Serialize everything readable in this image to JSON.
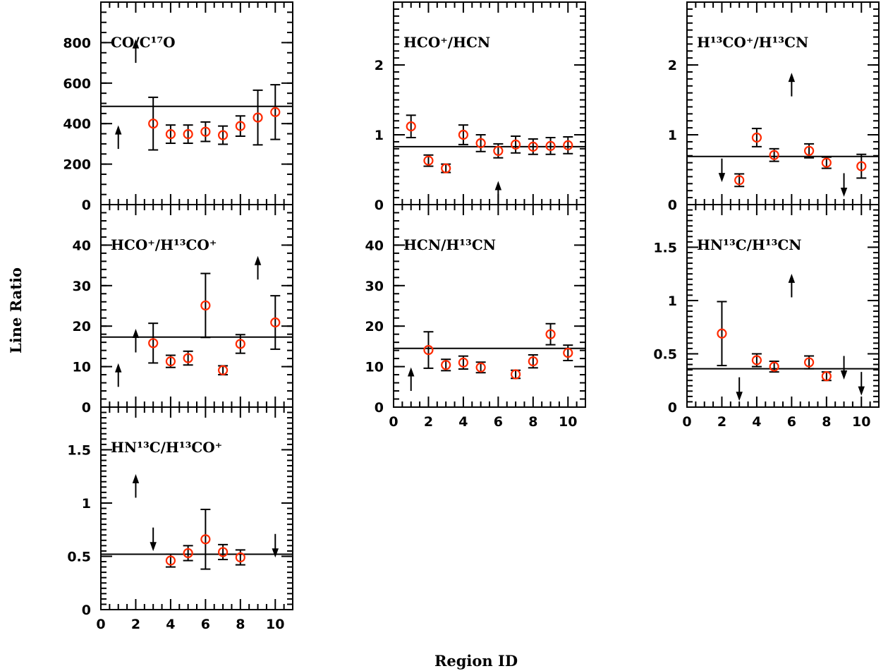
{
  "figure": {
    "xlabel": "Region ID",
    "ylabel": "Line Ratio",
    "colors": {
      "axes": "#000000",
      "marker": "#ff2a00"
    }
  },
  "chart_data": [
    {
      "id": "co-c17o",
      "type": "scatter",
      "title": "CO/C¹⁷O",
      "xlim": [
        0,
        11
      ],
      "ylim": [
        0,
        1000
      ],
      "yticks": [
        0,
        200,
        400,
        600,
        800
      ],
      "yminor": 50,
      "mean_line": 485,
      "points": [
        {
          "x": 3,
          "y": 400,
          "err": 130
        },
        {
          "x": 4,
          "y": 348,
          "err": 45
        },
        {
          "x": 5,
          "y": 348,
          "err": 45
        },
        {
          "x": 6,
          "y": 360,
          "err": 48
        },
        {
          "x": 7,
          "y": 343,
          "err": 45
        },
        {
          "x": 8,
          "y": 388,
          "err": 50
        },
        {
          "x": 9,
          "y": 430,
          "err": 135
        },
        {
          "x": 10,
          "y": 457,
          "err": 135
        }
      ],
      "limits": [
        {
          "x": 1,
          "y": 275,
          "dir": "up"
        },
        {
          "x": 2,
          "y": 700,
          "dir": "up"
        }
      ]
    },
    {
      "id": "hcop-hcn",
      "type": "scatter",
      "title": "HCO⁺/HCN",
      "xlim": [
        0,
        11
      ],
      "ylim": [
        0,
        2.9
      ],
      "yticks": [
        0,
        1,
        2
      ],
      "yminor": 0.1,
      "mean_line": 0.83,
      "points": [
        {
          "x": 1,
          "y": 1.12,
          "err": 0.16
        },
        {
          "x": 2,
          "y": 0.63,
          "err": 0.08
        },
        {
          "x": 3,
          "y": 0.52,
          "err": 0.06
        },
        {
          "x": 4,
          "y": 1.0,
          "err": 0.14
        },
        {
          "x": 5,
          "y": 0.88,
          "err": 0.12
        },
        {
          "x": 6,
          "y": 0.77,
          "err": 0.1
        },
        {
          "x": 7,
          "y": 0.86,
          "err": 0.12
        },
        {
          "x": 8,
          "y": 0.83,
          "err": 0.11
        },
        {
          "x": 9,
          "y": 0.84,
          "err": 0.12
        },
        {
          "x": 10,
          "y": 0.85,
          "err": 0.12
        }
      ],
      "limits": [
        {
          "x": 6,
          "y": 0.0,
          "dir": "up"
        }
      ]
    },
    {
      "id": "h13cop-h13cn",
      "type": "scatter",
      "title": "H¹³CO⁺/H¹³CN",
      "xlim": [
        0,
        11
      ],
      "ylim": [
        0,
        2.9
      ],
      "yticks": [
        0,
        1,
        2
      ],
      "yminor": 0.1,
      "mean_line": 0.69,
      "points": [
        {
          "x": 3,
          "y": 0.35,
          "err": 0.09
        },
        {
          "x": 4,
          "y": 0.96,
          "err": 0.13
        },
        {
          "x": 5,
          "y": 0.71,
          "err": 0.09
        },
        {
          "x": 7,
          "y": 0.77,
          "err": 0.1
        },
        {
          "x": 8,
          "y": 0.6,
          "err": 0.08
        },
        {
          "x": 10,
          "y": 0.55,
          "err": 0.17
        }
      ],
      "limits": [
        {
          "x": 2,
          "y": 0.66,
          "dir": "down"
        },
        {
          "x": 6,
          "y": 1.55,
          "dir": "up"
        },
        {
          "x": 9,
          "y": 0.45,
          "dir": "down"
        }
      ]
    },
    {
      "id": "hcop-h13cop",
      "type": "scatter",
      "title": "HCO⁺/H¹³CO⁺",
      "xlim": [
        0,
        11
      ],
      "ylim": [
        0,
        50
      ],
      "yticks": [
        0,
        10,
        20,
        30,
        40
      ],
      "yminor": 2,
      "mean_line": 17.3,
      "points": [
        {
          "x": 3,
          "y": 15.8,
          "err": 4.9
        },
        {
          "x": 4,
          "y": 11.3,
          "err": 1.5
        },
        {
          "x": 5,
          "y": 12.1,
          "err": 1.7
        },
        {
          "x": 6,
          "y": 25.1,
          "err": 7.9
        },
        {
          "x": 7,
          "y": 9.1,
          "err": 1.1
        },
        {
          "x": 8,
          "y": 15.6,
          "err": 2.3
        },
        {
          "x": 10,
          "y": 20.9,
          "err": 6.6
        }
      ],
      "limits": [
        {
          "x": 1,
          "y": 5,
          "dir": "up"
        },
        {
          "x": 2,
          "y": 13.5,
          "dir": "up"
        },
        {
          "x": 9,
          "y": 31.5,
          "dir": "up"
        }
      ]
    },
    {
      "id": "hcn-h13cn",
      "type": "scatter",
      "title": "HCN/H¹³CN",
      "xlim": [
        0,
        11
      ],
      "ylim": [
        0,
        50
      ],
      "yticks": [
        0,
        10,
        20,
        30,
        40
      ],
      "yminor": 2,
      "mean_line": 14.5,
      "points": [
        {
          "x": 2,
          "y": 14.1,
          "err": 4.5
        },
        {
          "x": 3,
          "y": 10.4,
          "err": 1.4
        },
        {
          "x": 4,
          "y": 11.0,
          "err": 1.6
        },
        {
          "x": 5,
          "y": 9.8,
          "err": 1.3
        },
        {
          "x": 7,
          "y": 8.1,
          "err": 1.0
        },
        {
          "x": 8,
          "y": 11.3,
          "err": 1.6
        },
        {
          "x": 9,
          "y": 18.0,
          "err": 2.6
        },
        {
          "x": 10,
          "y": 13.4,
          "err": 1.9
        }
      ],
      "limits": [
        {
          "x": 1,
          "y": 4,
          "dir": "up"
        }
      ]
    },
    {
      "id": "hn13c-h13cn",
      "type": "scatter",
      "title": "HN¹³C/H¹³CN",
      "xlim": [
        0,
        11
      ],
      "ylim": [
        0,
        1.9
      ],
      "yticks": [
        0,
        0.5,
        1,
        1.5
      ],
      "yminor": 0.05,
      "mean_line": 0.36,
      "points": [
        {
          "x": 2,
          "y": 0.69,
          "err": 0.3
        },
        {
          "x": 4,
          "y": 0.44,
          "err": 0.06
        },
        {
          "x": 5,
          "y": 0.38,
          "err": 0.05
        },
        {
          "x": 7,
          "y": 0.42,
          "err": 0.06
        },
        {
          "x": 8,
          "y": 0.29,
          "err": 0.04
        }
      ],
      "limits": [
        {
          "x": 3,
          "y": 0.28,
          "dir": "down"
        },
        {
          "x": 6,
          "y": 1.03,
          "dir": "up"
        },
        {
          "x": 9,
          "y": 0.48,
          "dir": "down"
        },
        {
          "x": 10,
          "y": 0.33,
          "dir": "down"
        }
      ]
    },
    {
      "id": "hn13c-h13cop",
      "type": "scatter",
      "title": "HN¹³C/H¹³CO⁺",
      "xlim": [
        0,
        11
      ],
      "ylim": [
        0,
        1.9
      ],
      "yticks": [
        0,
        0.5,
        1,
        1.5
      ],
      "yminor": 0.05,
      "mean_line": 0.52,
      "points": [
        {
          "x": 4,
          "y": 0.46,
          "err": 0.06
        },
        {
          "x": 5,
          "y": 0.53,
          "err": 0.07
        },
        {
          "x": 6,
          "y": 0.66,
          "err": 0.28
        },
        {
          "x": 7,
          "y": 0.54,
          "err": 0.07
        },
        {
          "x": 8,
          "y": 0.49,
          "err": 0.07
        }
      ],
      "limits": [
        {
          "x": 2,
          "y": 1.05,
          "dir": "up"
        },
        {
          "x": 3,
          "y": 0.77,
          "dir": "down"
        },
        {
          "x": 10,
          "y": 0.71,
          "dir": "down"
        }
      ]
    }
  ]
}
